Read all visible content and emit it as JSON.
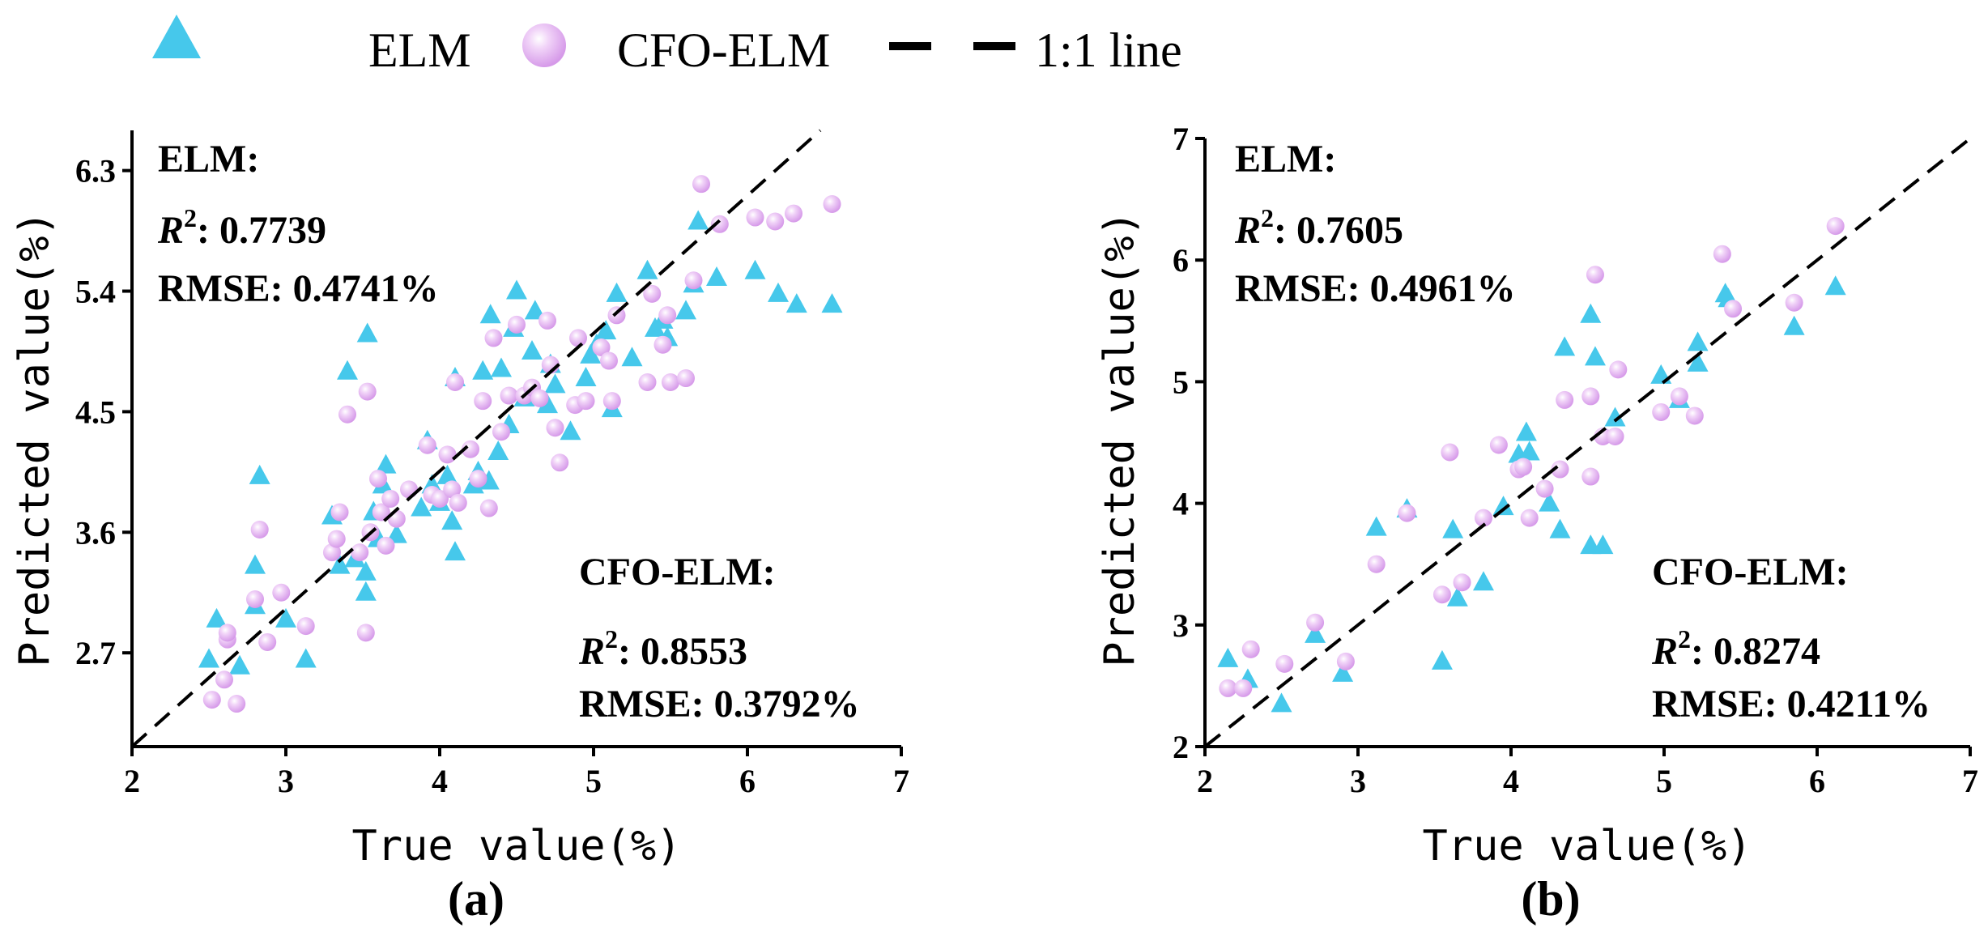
{
  "colors": {
    "elm": "#46c8eb",
    "cfo_elm": "#dba6ee",
    "line": "#000000"
  },
  "legend": {
    "elm": "ELM",
    "cfo_elm": "CFO-ELM",
    "line": "1:1 line"
  },
  "chart_data": [
    {
      "type": "scatter",
      "panel_label": "(a)",
      "xlabel": "True value(%)",
      "ylabel": "Predicted value(%)",
      "xlim": [
        2,
        7
      ],
      "ylim": [
        2,
        6.6
      ],
      "xticks": [
        "2",
        "3",
        "4",
        "5",
        "6",
        "7"
      ],
      "yticks": [
        "2.7",
        "3.6",
        "4.5",
        "5.4",
        "6.3"
      ],
      "annotations": {
        "elm_title": "ELM:",
        "elm_r2_label": "R",
        "elm_r2_sup": "2",
        "elm_r2_value": ": 0.7739",
        "elm_rmse": "RMSE: 0.4741%",
        "cfo_title": "CFO-ELM:",
        "cfo_r2_label": "R",
        "cfo_r2_sup": "2",
        "cfo_r2_value": ": 0.8553",
        "cfo_rmse": "RMSE: 0.3792%"
      },
      "series": [
        {
          "name": "ELM",
          "points": [
            [
              2.5,
              2.65
            ],
            [
              2.55,
              2.95
            ],
            [
              2.7,
              2.6
            ],
            [
              2.8,
              3.35
            ],
            [
              2.8,
              3.05
            ],
            [
              2.83,
              4.02
            ],
            [
              3.0,
              2.95
            ],
            [
              3.13,
              2.65
            ],
            [
              3.3,
              3.72
            ],
            [
              3.35,
              3.35
            ],
            [
              3.4,
              4.8
            ],
            [
              3.45,
              3.4
            ],
            [
              3.52,
              3.3
            ],
            [
              3.52,
              3.15
            ],
            [
              3.53,
              5.08
            ],
            [
              3.57,
              3.75
            ],
            [
              3.6,
              3.55
            ],
            [
              3.63,
              3.95
            ],
            [
              3.65,
              4.1
            ],
            [
              3.72,
              3.58
            ],
            [
              3.88,
              3.78
            ],
            [
              3.92,
              4.28
            ],
            [
              3.95,
              3.95
            ],
            [
              4.0,
              3.82
            ],
            [
              4.05,
              4.02
            ],
            [
              4.08,
              3.68
            ],
            [
              4.1,
              3.45
            ],
            [
              4.1,
              4.75
            ],
            [
              4.22,
              3.95
            ],
            [
              4.25,
              4.05
            ],
            [
              4.28,
              4.8
            ],
            [
              4.32,
              3.98
            ],
            [
              4.33,
              5.22
            ],
            [
              4.38,
              4.2
            ],
            [
              4.4,
              4.82
            ],
            [
              4.45,
              4.4
            ],
            [
              4.48,
              5.12
            ],
            [
              4.5,
              5.4
            ],
            [
              4.55,
              4.6
            ],
            [
              4.6,
              4.95
            ],
            [
              4.62,
              5.25
            ],
            [
              4.7,
              4.55
            ],
            [
              4.72,
              4.85
            ],
            [
              4.75,
              4.7
            ],
            [
              4.85,
              4.35
            ],
            [
              4.95,
              4.75
            ],
            [
              4.98,
              4.92
            ],
            [
              5.02,
              5.0
            ],
            [
              5.08,
              5.1
            ],
            [
              5.12,
              4.52
            ],
            [
              5.15,
              5.38
            ],
            [
              5.25,
              4.9
            ],
            [
              5.35,
              5.55
            ],
            [
              5.4,
              5.12
            ],
            [
              5.45,
              5.18
            ],
            [
              5.48,
              5.05
            ],
            [
              5.6,
              5.25
            ],
            [
              5.65,
              5.45
            ],
            [
              5.68,
              5.92
            ],
            [
              5.8,
              5.5
            ],
            [
              6.05,
              5.55
            ],
            [
              6.2,
              5.38
            ],
            [
              6.32,
              5.3
            ],
            [
              6.55,
              5.3
            ]
          ]
        },
        {
          "name": "CFO-ELM",
          "points": [
            [
              2.52,
              2.35
            ],
            [
              2.6,
              2.5
            ],
            [
              2.62,
              2.8
            ],
            [
              2.62,
              2.85
            ],
            [
              2.68,
              2.32
            ],
            [
              2.8,
              3.1
            ],
            [
              2.83,
              3.62
            ],
            [
              2.88,
              2.78
            ],
            [
              2.97,
              3.15
            ],
            [
              3.13,
              2.9
            ],
            [
              3.3,
              3.45
            ],
            [
              3.33,
              3.55
            ],
            [
              3.35,
              3.75
            ],
            [
              3.4,
              4.48
            ],
            [
              3.48,
              3.45
            ],
            [
              3.52,
              2.85
            ],
            [
              3.53,
              4.65
            ],
            [
              3.55,
              3.6
            ],
            [
              3.6,
              4.0
            ],
            [
              3.62,
              3.75
            ],
            [
              3.65,
              3.5
            ],
            [
              3.68,
              3.85
            ],
            [
              3.72,
              3.7
            ],
            [
              3.8,
              3.92
            ],
            [
              3.92,
              4.25
            ],
            [
              3.95,
              3.88
            ],
            [
              4.0,
              3.85
            ],
            [
              4.05,
              4.18
            ],
            [
              4.08,
              3.92
            ],
            [
              4.1,
              4.72
            ],
            [
              4.12,
              3.82
            ],
            [
              4.2,
              4.22
            ],
            [
              4.25,
              4.0
            ],
            [
              4.28,
              4.58
            ],
            [
              4.32,
              3.78
            ],
            [
              4.35,
              5.05
            ],
            [
              4.4,
              4.35
            ],
            [
              4.45,
              4.62
            ],
            [
              4.5,
              5.15
            ],
            [
              4.55,
              4.62
            ],
            [
              4.6,
              4.68
            ],
            [
              4.65,
              4.6
            ],
            [
              4.7,
              5.18
            ],
            [
              4.72,
              4.85
            ],
            [
              4.75,
              4.38
            ],
            [
              4.78,
              4.12
            ],
            [
              4.88,
              4.55
            ],
            [
              4.9,
              5.05
            ],
            [
              4.95,
              4.58
            ],
            [
              5.05,
              4.98
            ],
            [
              5.1,
              4.88
            ],
            [
              5.12,
              4.58
            ],
            [
              5.15,
              5.22
            ],
            [
              5.35,
              4.72
            ],
            [
              5.38,
              5.38
            ],
            [
              5.45,
              5.0
            ],
            [
              5.48,
              5.22
            ],
            [
              5.5,
              4.72
            ],
            [
              5.6,
              4.75
            ],
            [
              5.65,
              5.48
            ],
            [
              5.7,
              6.2
            ],
            [
              5.82,
              5.9
            ],
            [
              6.05,
              5.95
            ],
            [
              6.18,
              5.92
            ],
            [
              6.3,
              5.98
            ],
            [
              6.55,
              6.05
            ]
          ]
        }
      ]
    },
    {
      "type": "scatter",
      "panel_label": "(b)",
      "xlabel": "True value(%)",
      "ylabel": "Predicted value(%)",
      "xlim": [
        2,
        7
      ],
      "ylim": [
        2,
        7
      ],
      "xticks": [
        "2",
        "3",
        "4",
        "5",
        "6",
        "7"
      ],
      "yticks": [
        "2",
        "3",
        "4",
        "5",
        "6",
        "7"
      ],
      "annotations": {
        "elm_title": "ELM:",
        "elm_r2_label": "R",
        "elm_r2_sup": "2",
        "elm_r2_value": ": 0.7605",
        "elm_rmse": "RMSE: 0.4961%",
        "cfo_title": "CFO-ELM:",
        "cfo_r2_label": "R",
        "cfo_r2_sup": "2",
        "cfo_r2_value": ": 0.8274",
        "cfo_rmse": "RMSE: 0.4211%"
      },
      "series": [
        {
          "name": "ELM",
          "points": [
            [
              2.15,
              2.72
            ],
            [
              2.28,
              2.55
            ],
            [
              2.5,
              2.35
            ],
            [
              2.72,
              2.92
            ],
            [
              2.9,
              2.6
            ],
            [
              3.12,
              3.8
            ],
            [
              3.32,
              3.95
            ],
            [
              3.55,
              2.7
            ],
            [
              3.62,
              3.78
            ],
            [
              3.65,
              3.22
            ],
            [
              3.82,
              3.35
            ],
            [
              3.95,
              3.97
            ],
            [
              4.05,
              4.4
            ],
            [
              4.1,
              4.58
            ],
            [
              4.12,
              4.42
            ],
            [
              4.25,
              4.0
            ],
            [
              4.32,
              3.78
            ],
            [
              4.35,
              5.28
            ],
            [
              4.52,
              5.55
            ],
            [
              4.55,
              5.2
            ],
            [
              4.52,
              3.65
            ],
            [
              4.6,
              3.65
            ],
            [
              4.68,
              4.7
            ],
            [
              4.98,
              5.05
            ],
            [
              5.1,
              4.85
            ],
            [
              5.22,
              5.15
            ],
            [
              5.22,
              5.32
            ],
            [
              5.4,
              5.72
            ],
            [
              5.42,
              5.68
            ],
            [
              5.85,
              5.45
            ],
            [
              6.12,
              5.78
            ]
          ]
        },
        {
          "name": "CFO-ELM",
          "points": [
            [
              2.15,
              2.48
            ],
            [
              2.25,
              2.48
            ],
            [
              2.3,
              2.8
            ],
            [
              2.52,
              2.68
            ],
            [
              2.72,
              3.02
            ],
            [
              2.92,
              2.7
            ],
            [
              3.12,
              3.5
            ],
            [
              3.32,
              3.92
            ],
            [
              3.55,
              3.25
            ],
            [
              3.6,
              4.42
            ],
            [
              3.68,
              3.35
            ],
            [
              3.82,
              3.88
            ],
            [
              3.92,
              4.48
            ],
            [
              4.05,
              4.28
            ],
            [
              4.08,
              4.3
            ],
            [
              4.12,
              3.88
            ],
            [
              4.22,
              4.12
            ],
            [
              4.32,
              4.28
            ],
            [
              4.35,
              4.85
            ],
            [
              4.52,
              4.22
            ],
            [
              4.52,
              4.88
            ],
            [
              4.55,
              5.88
            ],
            [
              4.6,
              4.55
            ],
            [
              4.68,
              4.55
            ],
            [
              4.7,
              5.1
            ],
            [
              4.98,
              4.75
            ],
            [
              5.1,
              4.88
            ],
            [
              5.2,
              4.72
            ],
            [
              5.38,
              6.05
            ],
            [
              5.45,
              5.6
            ],
            [
              5.85,
              5.65
            ],
            [
              6.12,
              6.28
            ]
          ]
        }
      ]
    }
  ]
}
